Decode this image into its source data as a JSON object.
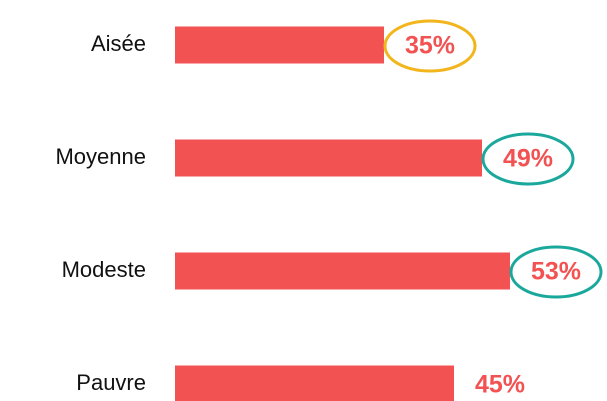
{
  "chart_data": {
    "type": "bar",
    "orientation": "horizontal",
    "categories": [
      "Aisée",
      "Moyenne",
      "Modeste",
      "Pauvre"
    ],
    "values": [
      35,
      49,
      53,
      45
    ],
    "value_labels": [
      "35%",
      "49%",
      "53%",
      "45%"
    ],
    "color": "#f25252",
    "highlight_colors": [
      "#f2b51c",
      "#1ba89c",
      "#1ba89c",
      null
    ]
  }
}
